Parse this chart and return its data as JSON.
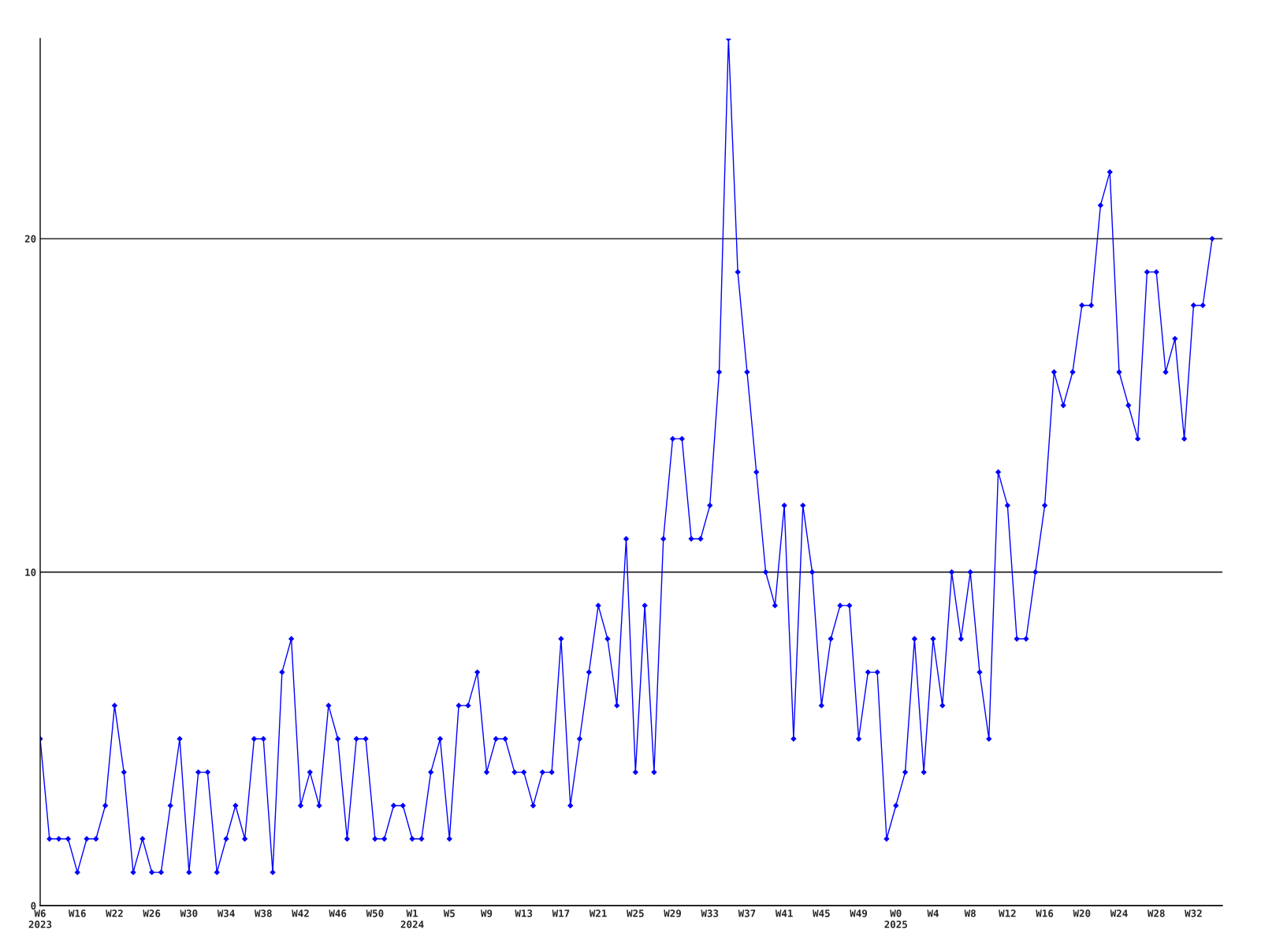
{
  "chart_data": {
    "type": "line",
    "categories": [
      "W6\n2023",
      null,
      null,
      null,
      "W16",
      null,
      null,
      null,
      "W22",
      null,
      null,
      null,
      "W26",
      null,
      null,
      null,
      "W30",
      null,
      null,
      null,
      "W34",
      null,
      null,
      null,
      "W38",
      null,
      null,
      null,
      "W42",
      null,
      null,
      null,
      "W46",
      null,
      null,
      null,
      "W50",
      null,
      null,
      null,
      "W1\n2024",
      null,
      null,
      null,
      "W5",
      null,
      null,
      null,
      "W9",
      null,
      null,
      null,
      "W13",
      null,
      null,
      null,
      "W17",
      null,
      null,
      null,
      "W21",
      null,
      null,
      null,
      "W25",
      null,
      null,
      null,
      "W29",
      null,
      null,
      null,
      "W33",
      null,
      null,
      null,
      "W37",
      null,
      null,
      null,
      "W41",
      null,
      null,
      null,
      "W45",
      null,
      null,
      null,
      "W49",
      null,
      null,
      null,
      "W0\n2025",
      null,
      null,
      null,
      "W4",
      null,
      null,
      null,
      "W8",
      null,
      null,
      null,
      "W12",
      null,
      null,
      null,
      "W16",
      null,
      null,
      null,
      "W20",
      null,
      null,
      null,
      "W24",
      null,
      null,
      null,
      "W28",
      null,
      null,
      null,
      "W32",
      null,
      null
    ],
    "series": [
      {
        "color": "#0000ff",
        "values": [
          5,
          2,
          2,
          2,
          1,
          2,
          2,
          3,
          6,
          4,
          1,
          2,
          1,
          1,
          3,
          5,
          1,
          4,
          4,
          1,
          2,
          3,
          2,
          5,
          5,
          1,
          7,
          8,
          3,
          4,
          3,
          6,
          5,
          2,
          5,
          5,
          2,
          2,
          3,
          3,
          2,
          2,
          4,
          5,
          2,
          6,
          6,
          7,
          4,
          5,
          5,
          4,
          4,
          3,
          4,
          4,
          8,
          3,
          5,
          7,
          9,
          8,
          6,
          11,
          4,
          9,
          4,
          11,
          14,
          14,
          11,
          11,
          12,
          16,
          26,
          19,
          16,
          13,
          10,
          9,
          12,
          5,
          12,
          10,
          6,
          8,
          9,
          9,
          5,
          7,
          7,
          2,
          3,
          4,
          8,
          4,
          8,
          6,
          10,
          8,
          10,
          7,
          5,
          13,
          12,
          8,
          8,
          10,
          12,
          16,
          15,
          16,
          18,
          18,
          21,
          22,
          16,
          15,
          14,
          19,
          19,
          16,
          17,
          14,
          18,
          18,
          20
        ]
      }
    ],
    "ylim": [
      0,
      26
    ],
    "yticks": [
      0,
      10,
      20
    ],
    "grid": "y",
    "marker": "diamond",
    "line_style": "solid"
  }
}
